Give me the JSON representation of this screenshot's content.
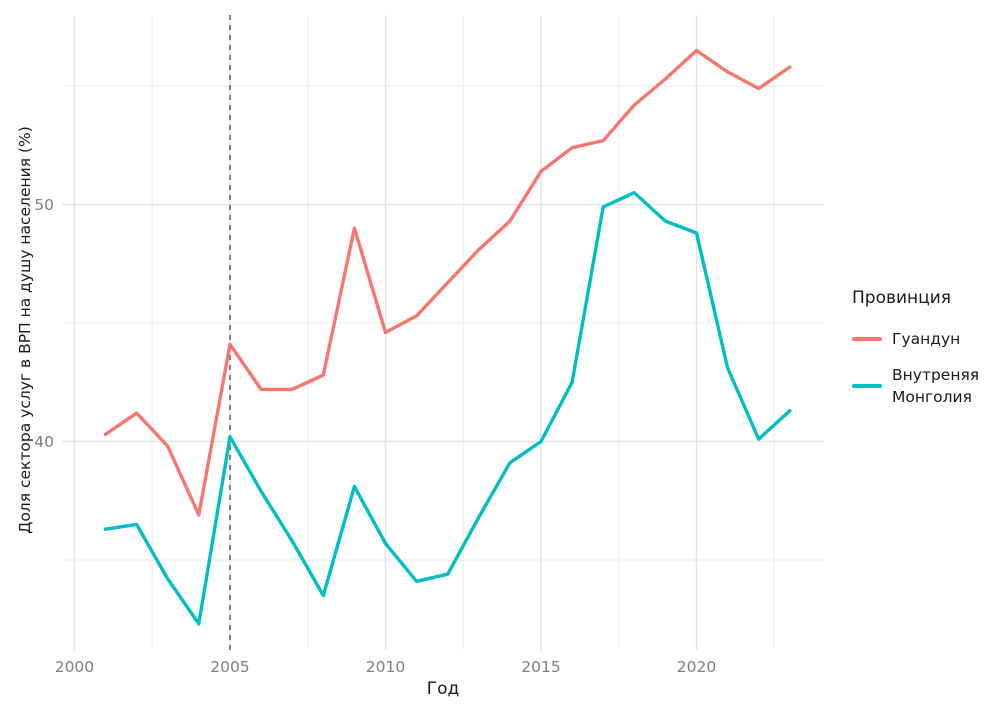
{
  "chart_data": {
    "type": "line",
    "title": "",
    "xlabel": "Год",
    "ylabel": "Доля сектора услуг в ВРП на душу населения (%)",
    "legend_title": "Провинция",
    "legend_position": "right",
    "grid": true,
    "xlim": [
      1999.6,
      2024.1
    ],
    "ylim": [
      31.2,
      58.0
    ],
    "x_major_ticks": [
      2000,
      2005,
      2010,
      2015,
      2020
    ],
    "x_minor_ticks": [
      2002.5,
      2007.5,
      2012.5,
      2017.5,
      2022.5
    ],
    "y_major_ticks": [
      40,
      50
    ],
    "y_minor_ticks": [
      35,
      45,
      55
    ],
    "vline": {
      "x": 2005,
      "style": "dashed",
      "color": "#757575"
    },
    "x": [
      2001,
      2002,
      2003,
      2004,
      2005,
      2006,
      2007,
      2008,
      2009,
      2010,
      2011,
      2012,
      2013,
      2014,
      2015,
      2016,
      2017,
      2018,
      2019,
      2020,
      2021,
      2022,
      2023
    ],
    "series": [
      {
        "name": "Гуандун",
        "color": "#F8766D",
        "values": [
          40.3,
          41.2,
          39.8,
          36.9,
          44.1,
          42.2,
          42.2,
          42.8,
          49.0,
          44.6,
          45.3,
          46.7,
          48.1,
          49.3,
          51.4,
          52.4,
          52.7,
          54.2,
          55.3,
          56.5,
          55.6,
          54.9,
          55.8
        ]
      },
      {
        "name": "Внутреняя Монголия",
        "color": "#00BFC4",
        "values": [
          36.3,
          36.5,
          34.2,
          32.3,
          40.2,
          37.9,
          35.8,
          33.5,
          38.1,
          35.7,
          34.1,
          34.4,
          36.8,
          39.1,
          40.0,
          42.5,
          49.9,
          50.5,
          49.3,
          48.8,
          43.1,
          40.1,
          41.3
        ]
      }
    ]
  },
  "legend": {
    "title": "Провинция",
    "entries": [
      {
        "label": "Гуандун",
        "color": "#F8766D"
      },
      {
        "label": "Внутреняя Монголия",
        "color": "#00BFC4"
      }
    ]
  },
  "colors": {
    "background": "#FFFFFF",
    "grid_major": "#E4E4E4",
    "grid_minor": "#F1F1F1",
    "tick_label": "#808080",
    "axis_title": "#1A1A1A",
    "series_1": "#F8766D",
    "series_2": "#00BFC4",
    "vline": "#757575"
  }
}
